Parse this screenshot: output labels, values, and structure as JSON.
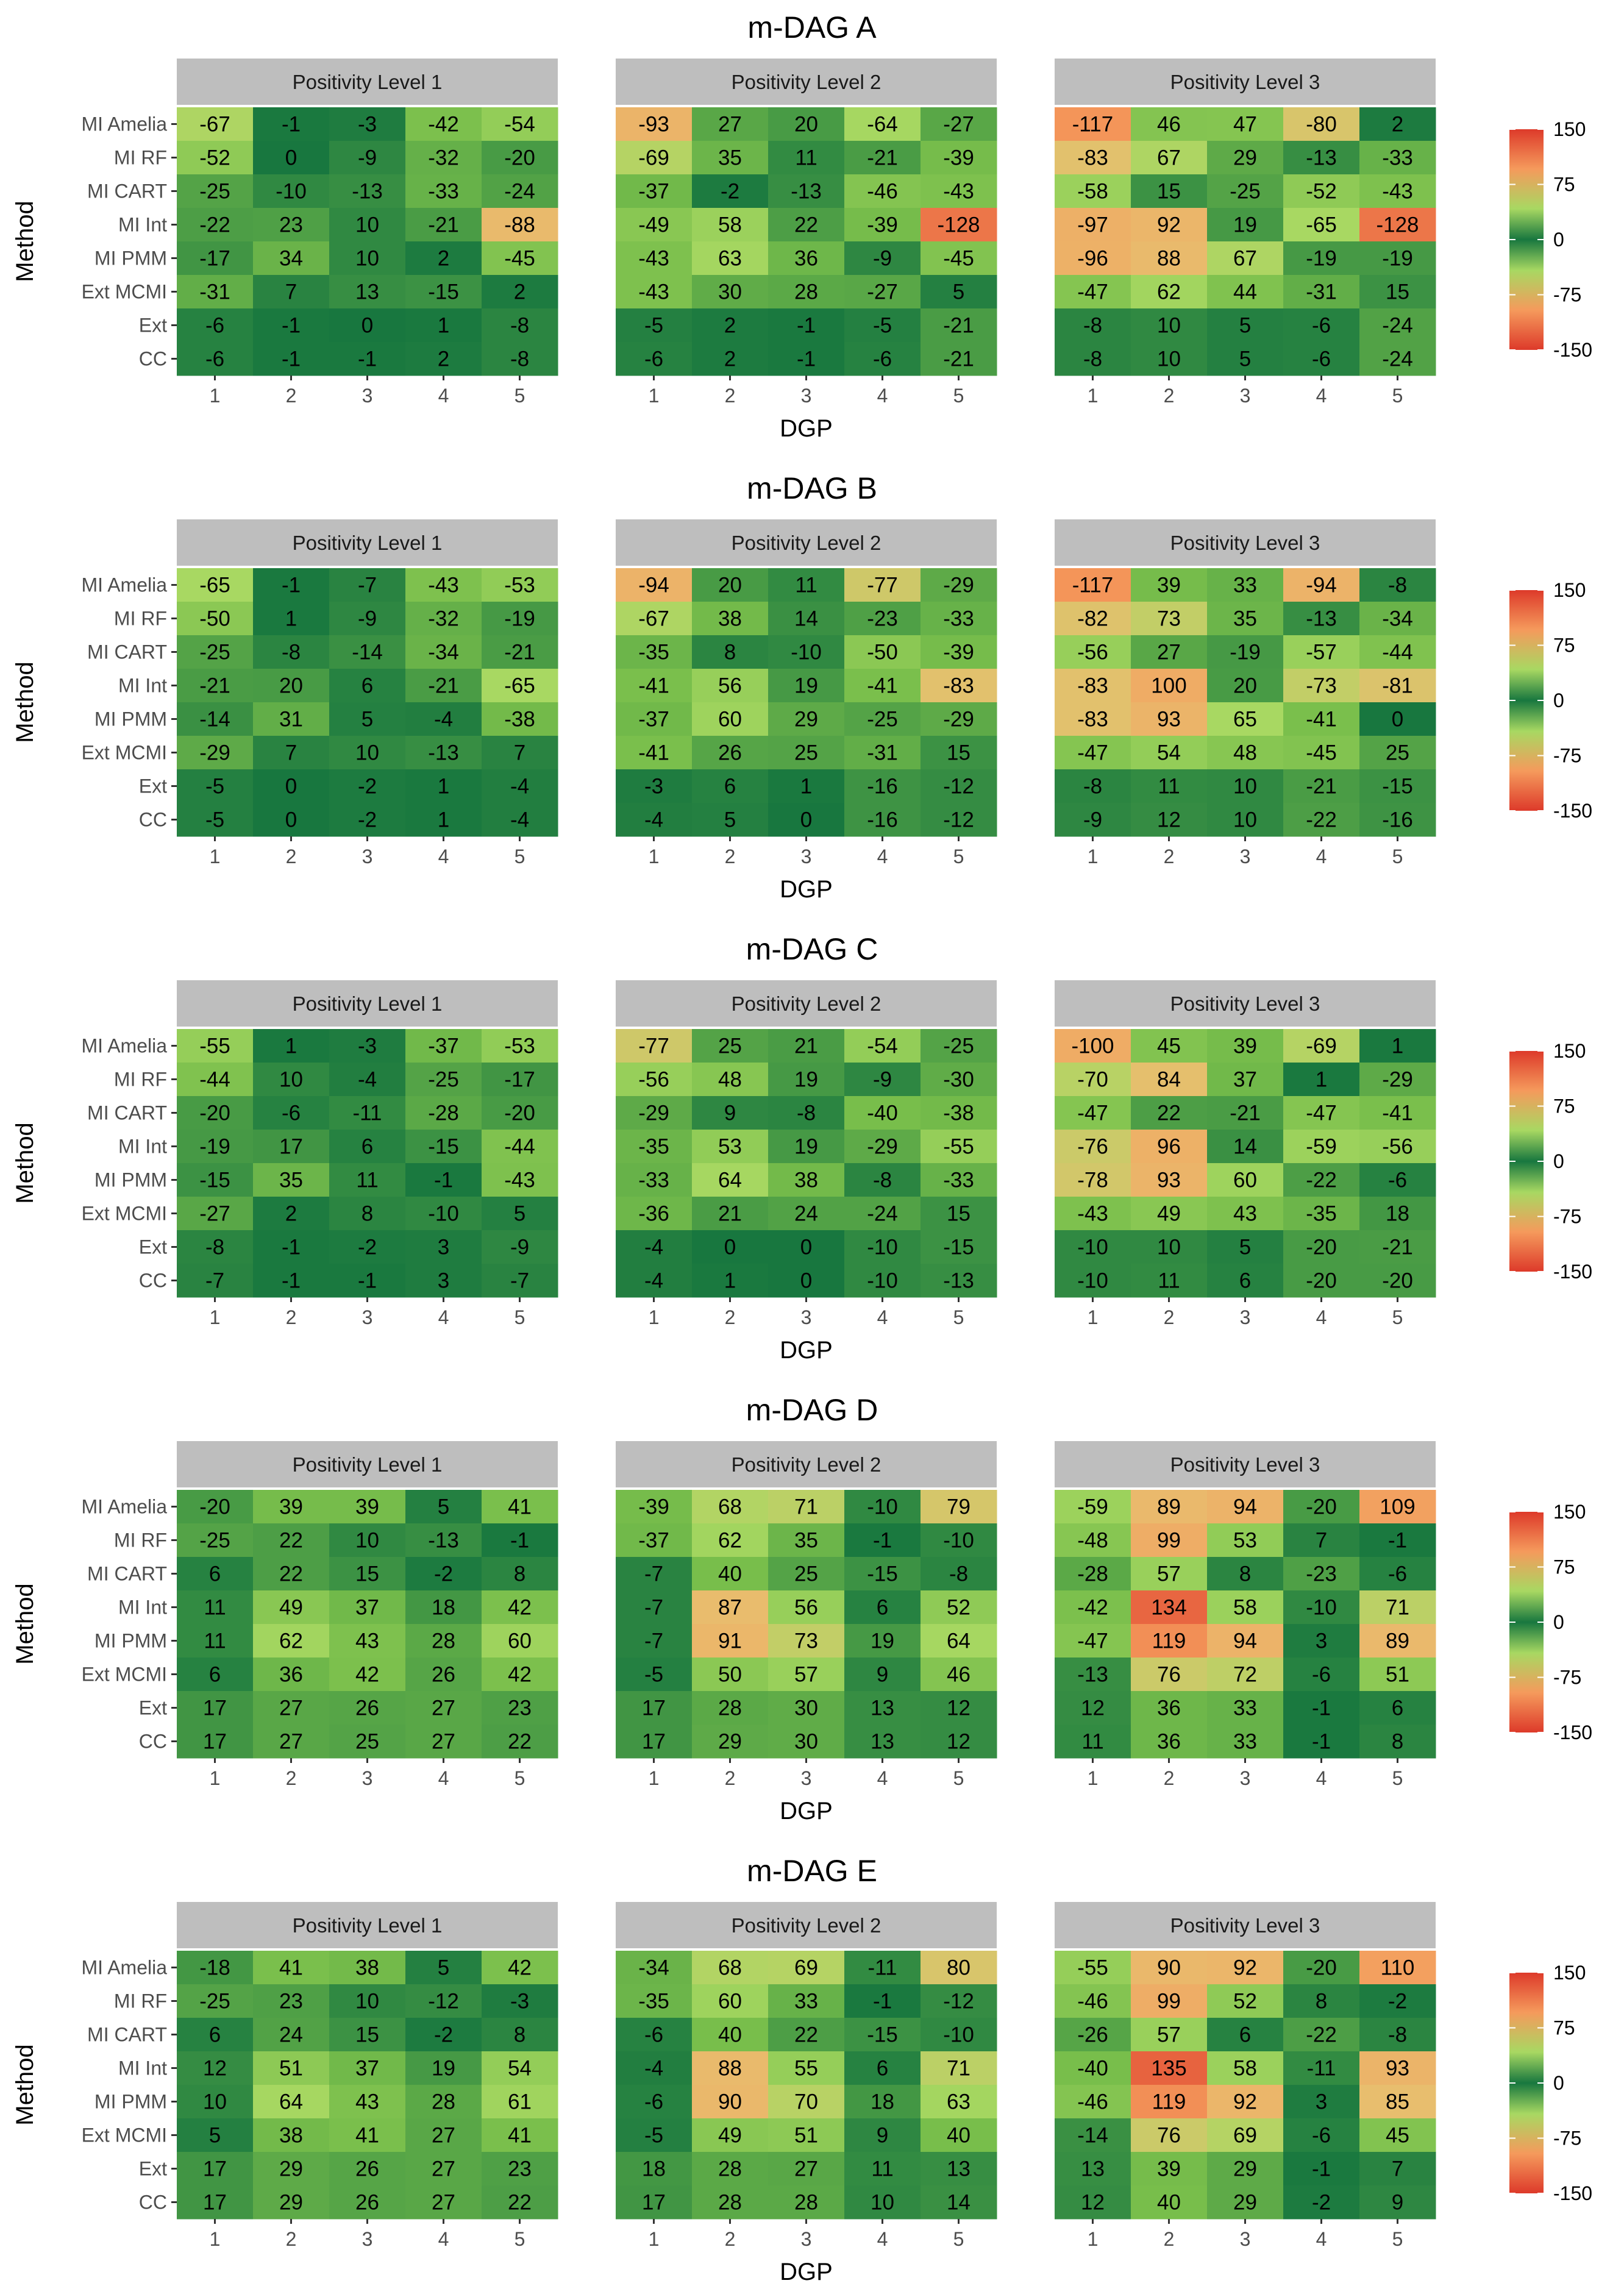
{
  "chart_data": [
    {
      "type": "heatmap",
      "title": "m-DAG A",
      "xlabel": "DGP",
      "ylabel": "Method",
      "x": [
        "1",
        "2",
        "3",
        "4",
        "5"
      ],
      "y": [
        "MI Amelia",
        "MI RF",
        "MI CART",
        "MI Int",
        "MI PMM",
        "Ext MCMI",
        "Ext",
        "CC"
      ],
      "panels": [
        {
          "label": "Positivity Level 1",
          "values": [
            [
              -67,
              -1,
              -3,
              -42,
              -54
            ],
            [
              -52,
              0,
              -9,
              -32,
              -20
            ],
            [
              -25,
              -10,
              -13,
              -33,
              -24
            ],
            [
              -22,
              23,
              10,
              -21,
              -88
            ],
            [
              -17,
              34,
              10,
              2,
              -45
            ],
            [
              -31,
              7,
              13,
              -15,
              2
            ],
            [
              -6,
              -1,
              0,
              1,
              -8
            ],
            [
              -6,
              -1,
              -1,
              2,
              -8
            ]
          ]
        },
        {
          "label": "Positivity Level 2",
          "values": [
            [
              -93,
              27,
              20,
              -64,
              -27
            ],
            [
              -69,
              35,
              11,
              -21,
              -39
            ],
            [
              -37,
              -2,
              -13,
              -46,
              -43
            ],
            [
              -49,
              58,
              22,
              -39,
              -128
            ],
            [
              -43,
              63,
              36,
              -9,
              -45
            ],
            [
              -43,
              30,
              28,
              -27,
              5
            ],
            [
              -5,
              2,
              -1,
              -5,
              -21
            ],
            [
              -6,
              2,
              -1,
              -6,
              -21
            ]
          ]
        },
        {
          "label": "Positivity Level 3",
          "values": [
            [
              -117,
              46,
              47,
              -80,
              2
            ],
            [
              -83,
              67,
              29,
              -13,
              -33
            ],
            [
              -58,
              15,
              -25,
              -52,
              -43
            ],
            [
              -97,
              92,
              19,
              -65,
              -128
            ],
            [
              -96,
              88,
              67,
              -19,
              -19
            ],
            [
              -47,
              62,
              44,
              -31,
              15
            ],
            [
              -8,
              10,
              5,
              -6,
              -24
            ],
            [
              -8,
              10,
              5,
              -6,
              -24
            ]
          ]
        }
      ],
      "legend": {
        "ticks": [
          "150",
          "75",
          "0",
          "-75",
          "-150"
        ],
        "limits": [
          -150,
          150
        ],
        "placement": "right"
      }
    },
    {
      "type": "heatmap",
      "title": "m-DAG B",
      "xlabel": "DGP",
      "ylabel": "Method",
      "x": [
        "1",
        "2",
        "3",
        "4",
        "5"
      ],
      "y": [
        "MI Amelia",
        "MI RF",
        "MI CART",
        "MI Int",
        "MI PMM",
        "Ext MCMI",
        "Ext",
        "CC"
      ],
      "panels": [
        {
          "label": "Positivity Level 1",
          "values": [
            [
              -65,
              -1,
              -7,
              -43,
              -53
            ],
            [
              -50,
              1,
              -9,
              -32,
              -19
            ],
            [
              -25,
              -8,
              -14,
              -34,
              -21
            ],
            [
              -21,
              20,
              6,
              -21,
              -65
            ],
            [
              -14,
              31,
              5,
              -4,
              -38
            ],
            [
              -29,
              7,
              10,
              -13,
              7
            ],
            [
              -5,
              0,
              -2,
              1,
              -4
            ],
            [
              -5,
              0,
              -2,
              1,
              -4
            ]
          ]
        },
        {
          "label": "Positivity Level 2",
          "values": [
            [
              -94,
              20,
              11,
              -77,
              -29
            ],
            [
              -67,
              38,
              14,
              -23,
              -33
            ],
            [
              -35,
              8,
              -10,
              -50,
              -39
            ],
            [
              -41,
              56,
              19,
              -41,
              -83
            ],
            [
              -37,
              60,
              29,
              -25,
              -29
            ],
            [
              -41,
              26,
              25,
              -31,
              15
            ],
            [
              -3,
              6,
              1,
              -16,
              -12
            ],
            [
              -4,
              5,
              0,
              -16,
              -12
            ]
          ]
        },
        {
          "label": "Positivity Level 3",
          "values": [
            [
              -117,
              39,
              33,
              -94,
              -8
            ],
            [
              -82,
              73,
              35,
              -13,
              -34
            ],
            [
              -56,
              27,
              -19,
              -57,
              -44
            ],
            [
              -83,
              100,
              20,
              -73,
              -81
            ],
            [
              -83,
              93,
              65,
              -41,
              0
            ],
            [
              -47,
              54,
              48,
              -45,
              25
            ],
            [
              -8,
              11,
              10,
              -21,
              -15
            ],
            [
              -9,
              12,
              10,
              -22,
              -16
            ]
          ]
        }
      ],
      "legend": {
        "ticks": [
          "150",
          "75",
          "0",
          "-75",
          "-150"
        ],
        "limits": [
          -150,
          150
        ],
        "placement": "right"
      }
    },
    {
      "type": "heatmap",
      "title": "m-DAG C",
      "xlabel": "DGP",
      "ylabel": "Method",
      "x": [
        "1",
        "2",
        "3",
        "4",
        "5"
      ],
      "y": [
        "MI Amelia",
        "MI RF",
        "MI CART",
        "MI Int",
        "MI PMM",
        "Ext MCMI",
        "Ext",
        "CC"
      ],
      "panels": [
        {
          "label": "Positivity Level 1",
          "values": [
            [
              -55,
              1,
              -3,
              -37,
              -53
            ],
            [
              -44,
              10,
              -4,
              -25,
              -17
            ],
            [
              -20,
              -6,
              -11,
              -28,
              -20
            ],
            [
              -19,
              17,
              6,
              -15,
              -44
            ],
            [
              -15,
              35,
              11,
              -1,
              -43
            ],
            [
              -27,
              2,
              8,
              -10,
              5
            ],
            [
              -8,
              -1,
              -2,
              3,
              -9
            ],
            [
              -7,
              -1,
              -1,
              3,
              -7
            ]
          ]
        },
        {
          "label": "Positivity Level 2",
          "values": [
            [
              -77,
              25,
              21,
              -54,
              -25
            ],
            [
              -56,
              48,
              19,
              -9,
              -30
            ],
            [
              -29,
              9,
              -8,
              -40,
              -38
            ],
            [
              -35,
              53,
              19,
              -29,
              -55
            ],
            [
              -33,
              64,
              38,
              -8,
              -33
            ],
            [
              -36,
              21,
              24,
              -24,
              15
            ],
            [
              -4,
              0,
              0,
              -10,
              -15
            ],
            [
              -4,
              1,
              0,
              -10,
              -13
            ]
          ]
        },
        {
          "label": "Positivity Level 3",
          "values": [
            [
              -100,
              45,
              39,
              -69,
              1
            ],
            [
              -70,
              84,
              37,
              1,
              -29
            ],
            [
              -47,
              22,
              -21,
              -47,
              -41
            ],
            [
              -76,
              96,
              14,
              -59,
              -56
            ],
            [
              -78,
              93,
              60,
              -22,
              -6
            ],
            [
              -43,
              49,
              43,
              -35,
              18
            ],
            [
              -10,
              10,
              5,
              -20,
              -21
            ],
            [
              -10,
              11,
              6,
              -20,
              -20
            ]
          ]
        }
      ],
      "legend": {
        "ticks": [
          "150",
          "75",
          "0",
          "-75",
          "-150"
        ],
        "limits": [
          -150,
          150
        ],
        "placement": "right"
      }
    },
    {
      "type": "heatmap",
      "title": "m-DAG D",
      "xlabel": "DGP",
      "ylabel": "Method",
      "x": [
        "1",
        "2",
        "3",
        "4",
        "5"
      ],
      "y": [
        "MI Amelia",
        "MI RF",
        "MI CART",
        "MI Int",
        "MI PMM",
        "Ext MCMI",
        "Ext",
        "CC"
      ],
      "panels": [
        {
          "label": "Positivity Level 1",
          "values": [
            [
              -20,
              39,
              39,
              5,
              41
            ],
            [
              -25,
              22,
              10,
              -13,
              -1
            ],
            [
              6,
              22,
              15,
              -2,
              8
            ],
            [
              11,
              49,
              37,
              18,
              42
            ],
            [
              11,
              62,
              43,
              28,
              60
            ],
            [
              6,
              36,
              42,
              26,
              42
            ],
            [
              17,
              27,
              26,
              27,
              23
            ],
            [
              17,
              27,
              25,
              27,
              22
            ]
          ]
        },
        {
          "label": "Positivity Level 2",
          "values": [
            [
              -39,
              68,
              71,
              -10,
              79
            ],
            [
              -37,
              62,
              35,
              -1,
              -10
            ],
            [
              -7,
              40,
              25,
              -15,
              -8
            ],
            [
              -7,
              87,
              56,
              6,
              52
            ],
            [
              -7,
              91,
              73,
              19,
              64
            ],
            [
              -5,
              50,
              57,
              9,
              46
            ],
            [
              17,
              28,
              30,
              13,
              12
            ],
            [
              17,
              29,
              30,
              13,
              12
            ]
          ]
        },
        {
          "label": "Positivity Level 3",
          "values": [
            [
              -59,
              89,
              94,
              -20,
              109
            ],
            [
              -48,
              99,
              53,
              7,
              -1
            ],
            [
              -28,
              57,
              8,
              -23,
              -6
            ],
            [
              -42,
              134,
              58,
              -10,
              71
            ],
            [
              -47,
              119,
              94,
              3,
              89
            ],
            [
              -13,
              76,
              72,
              -6,
              51
            ],
            [
              12,
              36,
              33,
              -1,
              6
            ],
            [
              11,
              36,
              33,
              -1,
              8
            ]
          ]
        }
      ],
      "legend": {
        "ticks": [
          "150",
          "75",
          "0",
          "-75",
          "-150"
        ],
        "limits": [
          -150,
          150
        ],
        "placement": "right"
      }
    },
    {
      "type": "heatmap",
      "title": "m-DAG E",
      "xlabel": "DGP",
      "ylabel": "Method",
      "x": [
        "1",
        "2",
        "3",
        "4",
        "5"
      ],
      "y": [
        "MI Amelia",
        "MI RF",
        "MI CART",
        "MI Int",
        "MI PMM",
        "Ext MCMI",
        "Ext",
        "CC"
      ],
      "panels": [
        {
          "label": "Positivity Level 1",
          "values": [
            [
              -18,
              41,
              38,
              5,
              42
            ],
            [
              -25,
              23,
              10,
              -12,
              -3
            ],
            [
              6,
              24,
              15,
              -2,
              8
            ],
            [
              12,
              51,
              37,
              19,
              54
            ],
            [
              10,
              64,
              43,
              28,
              61
            ],
            [
              5,
              38,
              41,
              27,
              41
            ],
            [
              17,
              29,
              26,
              27,
              23
            ],
            [
              17,
              29,
              26,
              27,
              22
            ]
          ]
        },
        {
          "label": "Positivity Level 2",
          "values": [
            [
              -34,
              68,
              69,
              -11,
              80
            ],
            [
              -35,
              60,
              33,
              -1,
              -12
            ],
            [
              -6,
              40,
              22,
              -15,
              -10
            ],
            [
              -4,
              88,
              55,
              6,
              71
            ],
            [
              -6,
              90,
              70,
              18,
              63
            ],
            [
              -5,
              49,
              51,
              9,
              40
            ],
            [
              18,
              28,
              27,
              11,
              13
            ],
            [
              17,
              28,
              28,
              10,
              14
            ]
          ]
        },
        {
          "label": "Positivity Level 3",
          "values": [
            [
              -55,
              90,
              92,
              -20,
              110
            ],
            [
              -46,
              99,
              52,
              8,
              -2
            ],
            [
              -26,
              57,
              6,
              -22,
              -8
            ],
            [
              -40,
              135,
              58,
              -11,
              93
            ],
            [
              -46,
              119,
              92,
              3,
              85
            ],
            [
              -14,
              76,
              69,
              -6,
              45
            ],
            [
              13,
              39,
              29,
              -1,
              7
            ],
            [
              12,
              40,
              29,
              -2,
              9
            ]
          ]
        }
      ],
      "legend": {
        "ticks": [
          "150",
          "75",
          "0",
          "-75",
          "-150"
        ],
        "limits": [
          -150,
          150
        ],
        "placement": "right"
      }
    }
  ],
  "colors": {
    "strip_bg": "#bebebe",
    "scale": [
      "#dd3a2a",
      "#f59a5c",
      "#a8d862",
      "#18773f",
      "#a8d862",
      "#f59a5c",
      "#dd3a2a"
    ]
  }
}
